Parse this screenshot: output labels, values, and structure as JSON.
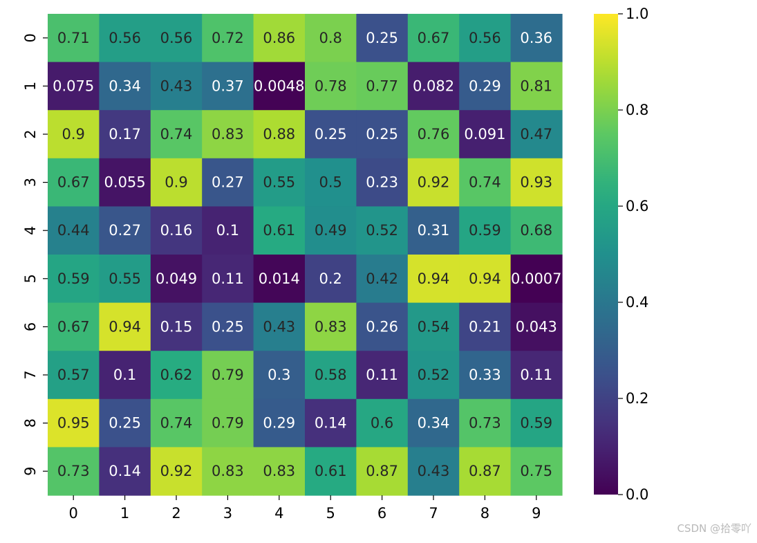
{
  "chart_data": {
    "type": "heatmap",
    "title": "",
    "xlabel": "",
    "ylabel": "",
    "x_categories": [
      "0",
      "1",
      "2",
      "3",
      "4",
      "5",
      "6",
      "7",
      "8",
      "9"
    ],
    "y_categories": [
      "0",
      "1",
      "2",
      "3",
      "4",
      "5",
      "6",
      "7",
      "8",
      "9"
    ],
    "values": [
      [
        0.71,
        0.56,
        0.56,
        0.72,
        0.86,
        0.8,
        0.25,
        0.67,
        0.56,
        0.36
      ],
      [
        0.075,
        0.34,
        0.43,
        0.37,
        0.0048,
        0.78,
        0.77,
        0.082,
        0.29,
        0.81
      ],
      [
        0.9,
        0.17,
        0.74,
        0.83,
        0.88,
        0.25,
        0.25,
        0.76,
        0.091,
        0.47
      ],
      [
        0.67,
        0.055,
        0.9,
        0.27,
        0.55,
        0.5,
        0.23,
        0.92,
        0.74,
        0.93
      ],
      [
        0.44,
        0.27,
        0.16,
        0.1,
        0.61,
        0.49,
        0.52,
        0.31,
        0.59,
        0.68
      ],
      [
        0.59,
        0.55,
        0.049,
        0.11,
        0.014,
        0.2,
        0.42,
        0.94,
        0.94,
        0.0007
      ],
      [
        0.67,
        0.94,
        0.15,
        0.25,
        0.43,
        0.83,
        0.26,
        0.54,
        0.21,
        0.043
      ],
      [
        0.57,
        0.1,
        0.62,
        0.79,
        0.3,
        0.58,
        0.11,
        0.52,
        0.33,
        0.11
      ],
      [
        0.95,
        0.25,
        0.74,
        0.79,
        0.29,
        0.14,
        0.6,
        0.34,
        0.73,
        0.59
      ],
      [
        0.73,
        0.14,
        0.92,
        0.83,
        0.83,
        0.61,
        0.87,
        0.43,
        0.87,
        0.75
      ]
    ],
    "annotations": [
      [
        "0.71",
        "0.56",
        "0.56",
        "0.72",
        "0.86",
        "0.8",
        "0.25",
        "0.67",
        "0.56",
        "0.36"
      ],
      [
        "0.075",
        "0.34",
        "0.43",
        "0.37",
        "0.0048",
        "0.78",
        "0.77",
        "0.082",
        "0.29",
        "0.81"
      ],
      [
        "0.9",
        "0.17",
        "0.74",
        "0.83",
        "0.88",
        "0.25",
        "0.25",
        "0.76",
        "0.091",
        "0.47"
      ],
      [
        "0.67",
        "0.055",
        "0.9",
        "0.27",
        "0.55",
        "0.5",
        "0.23",
        "0.92",
        "0.74",
        "0.93"
      ],
      [
        "0.44",
        "0.27",
        "0.16",
        "0.1",
        "0.61",
        "0.49",
        "0.52",
        "0.31",
        "0.59",
        "0.68"
      ],
      [
        "0.59",
        "0.55",
        "0.049",
        "0.11",
        "0.014",
        "0.2",
        "0.42",
        "0.94",
        "0.94",
        "0.0007"
      ],
      [
        "0.67",
        "0.94",
        "0.15",
        "0.25",
        "0.43",
        "0.83",
        "0.26",
        "0.54",
        "0.21",
        "0.043"
      ],
      [
        "0.57",
        "0.1",
        "0.62",
        "0.79",
        "0.3",
        "0.58",
        "0.11",
        "0.52",
        "0.33",
        "0.11"
      ],
      [
        "0.95",
        "0.25",
        "0.74",
        "0.79",
        "0.29",
        "0.14",
        "0.6",
        "0.34",
        "0.73",
        "0.59"
      ],
      [
        "0.73",
        "0.14",
        "0.92",
        "0.83",
        "0.83",
        "0.61",
        "0.87",
        "0.43",
        "0.87",
        "0.75"
      ]
    ],
    "colormap": "viridis",
    "vmin": 0.0,
    "vmax": 1.0,
    "colorbar_ticks": [
      "0.0",
      "0.2",
      "0.4",
      "0.6",
      "0.8",
      "1.0"
    ],
    "legend_position": "right",
    "grid": false
  },
  "watermark": "CSDN @拾零吖"
}
